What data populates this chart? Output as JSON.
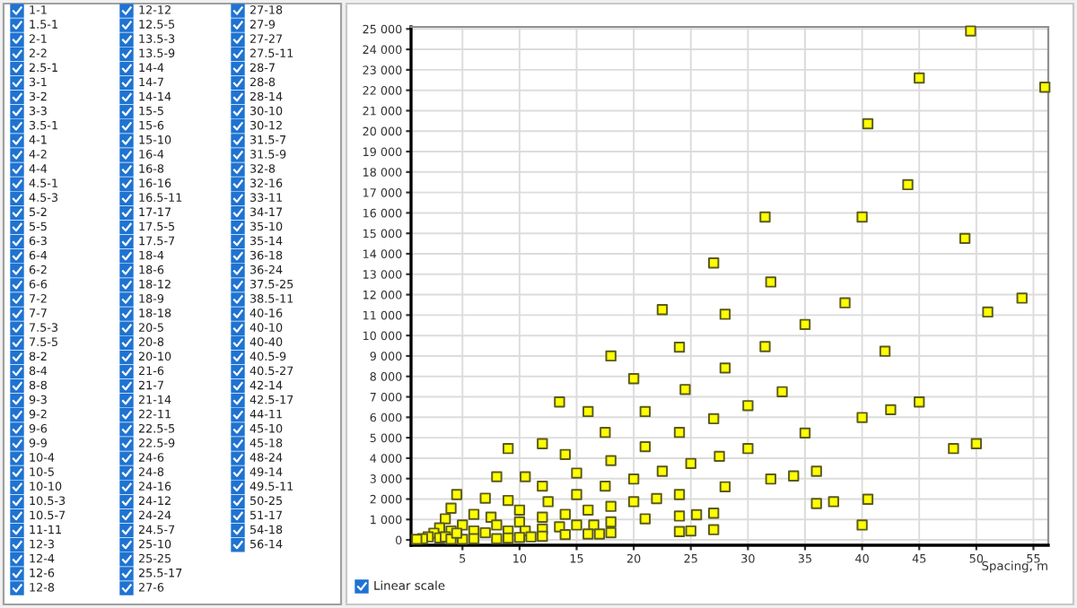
{
  "chart_data": [
    {
      "type": "other",
      "annotations": [
        "1-1",
        "1.5-1",
        "2-1",
        "2-2",
        "2.5-1",
        "3-1",
        "3-2",
        "3-3",
        "3.5-1",
        "4-1",
        "4-2",
        "4-4",
        "4.5-1",
        "4.5-3",
        "5-2",
        "5-5",
        "6-3",
        "6-4",
        "6-2",
        "6-6",
        "7-2",
        "7-7",
        "7.5-3",
        "7.5-5",
        "8-2",
        "8-4",
        "8-8",
        "9-3",
        "9-2",
        "9-6",
        "9-9",
        "10-4",
        "10-5",
        "10-10",
        "10.5-3",
        "10.5-7",
        "11-11",
        "12-3",
        "12-4",
        "12-6",
        "12-8",
        "12-12",
        "12.5-5",
        "13.5-3",
        "13.5-9",
        "14-4",
        "14-7",
        "14-14",
        "15-5",
        "15-6",
        "15-10",
        "16-4",
        "16-8",
        "16-16",
        "16.5-11",
        "17-17",
        "17.5-5",
        "17.5-7",
        "18-4",
        "18-6",
        "18-12",
        "18-9",
        "18-18",
        "20-5",
        "20-8",
        "20-10",
        "21-6",
        "21-7",
        "21-14",
        "22-11",
        "22.5-5",
        "22.5-9",
        "24-6",
        "24-8",
        "24-16",
        "24-12",
        "24-24",
        "24.5-7",
        "25-10",
        "25-25",
        "25.5-17",
        "27-6",
        "27-18",
        "27-9",
        "27-27",
        "27.5-11",
        "28-7",
        "28-8",
        "28-14",
        "30-10",
        "30-12",
        "31.5-7",
        "31.5-9",
        "32-8",
        "32-16",
        "33-11",
        "34-17",
        "35-10",
        "35-14",
        "36-18",
        "36-24",
        "37.5-25",
        "38.5-11",
        "40-16",
        "40-10",
        "40-40",
        "40.5-9",
        "40.5-27",
        "42-14",
        "42.5-17",
        "44-11",
        "45-10",
        "45-18",
        "48-24",
        "49-14",
        "49.5-11",
        "50-25",
        "51-17",
        "54-18",
        "56-14"
      ]
    },
    {
      "type": "scatter",
      "xlabel": "Spacing, m",
      "annotations": [
        "Linear scale"
      ],
      "marker": "square",
      "grid": true,
      "color": "#ffff00",
      "xlim": [
        0.5,
        56.3
      ],
      "ylim": [
        -260,
        25100
      ],
      "xticks": [
        5,
        10,
        15,
        20,
        25,
        30,
        35,
        40,
        45,
        50,
        55
      ],
      "yticks": [
        {
          "value": 0,
          "label": "0"
        },
        {
          "value": 1000,
          "label": "1 000"
        },
        {
          "value": 2000,
          "label": "2 000"
        },
        {
          "value": 3000,
          "label": "3 000"
        },
        {
          "value": 4000,
          "label": "4 000"
        },
        {
          "value": 5000,
          "label": "5 000"
        },
        {
          "value": 6000,
          "label": "6 000"
        },
        {
          "value": 7000,
          "label": "7 000"
        },
        {
          "value": 8000,
          "label": "8 000"
        },
        {
          "value": 9000,
          "label": "9 000"
        },
        {
          "value": 10000,
          "label": "10 000"
        },
        {
          "value": 11000,
          "label": "11 000"
        },
        {
          "value": 12000,
          "label": "12 000"
        },
        {
          "value": 13000,
          "label": "13 000"
        },
        {
          "value": 14000,
          "label": "14 000"
        },
        {
          "value": 15000,
          "label": "15 000"
        },
        {
          "value": 16000,
          "label": "16 000"
        },
        {
          "value": 17000,
          "label": "17 000"
        },
        {
          "value": 18000,
          "label": "18 000"
        },
        {
          "value": 19000,
          "label": "19 000"
        },
        {
          "value": 20000,
          "label": "20 000"
        },
        {
          "value": 21000,
          "label": "21 000"
        },
        {
          "value": 22000,
          "label": "22 000"
        },
        {
          "value": 23000,
          "label": "23 000"
        },
        {
          "value": 24000,
          "label": "24 000"
        },
        {
          "value": 25000,
          "label": "25 000"
        }
      ],
      "x": [
        49.5,
        45,
        56,
        40.5,
        44,
        31.5,
        40,
        49,
        27,
        32,
        38.5,
        54,
        28,
        51,
        35,
        31.5,
        42,
        28,
        33,
        30,
        45,
        27,
        40,
        42.5,
        35,
        30,
        27.5,
        48,
        50,
        25,
        28,
        32,
        34,
        36,
        36,
        37.5,
        40.5,
        25.5,
        27,
        25,
        27,
        40,
        22.5,
        24,
        18,
        24.5,
        20,
        13.5,
        16,
        21,
        17.5,
        24,
        9,
        12,
        21,
        14,
        18,
        8,
        10.5,
        15,
        20,
        22.5,
        12,
        17.5,
        4.5,
        7,
        9,
        12.5,
        15,
        20,
        22,
        24,
        4,
        6,
        10,
        14,
        16,
        18,
        3.5,
        7.5,
        12,
        21,
        24,
        3,
        5,
        6,
        8,
        10,
        13.5,
        15,
        16.5,
        18,
        4,
        7,
        9,
        10.5,
        12,
        14,
        16,
        17,
        18,
        24,
        2.5,
        2,
        1.5,
        1,
        3,
        3.5,
        4,
        5,
        6,
        8,
        9,
        10,
        11,
        12,
        4.5
      ],
      "values": [
        24900,
        22600,
        22150,
        20360,
        17380,
        15800,
        15800,
        14750,
        13550,
        12620,
        11600,
        11830,
        11040,
        11150,
        10540,
        9460,
        9230,
        8410,
        7250,
        6570,
        6750,
        5930,
        5990,
        6370,
        5230,
        4470,
        4090,
        4470,
        4710,
        3740,
        2600,
        2980,
        3130,
        3360,
        1780,
        1870,
        1990,
        1230,
        1310,
        440,
        500,
        730,
        11270,
        9430,
        9000,
        7360,
        7890,
        6750,
        6280,
        6280,
        5260,
        5260,
        4470,
        4710,
        4560,
        4180,
        3880,
        3090,
        3090,
        3270,
        2980,
        3360,
        2630,
        2630,
        2220,
        2040,
        1930,
        1870,
        2220,
        1870,
        2020,
        2220,
        1550,
        1250,
        1460,
        1250,
        1460,
        1640,
        1030,
        1110,
        1110,
        1030,
        1170,
        590,
        730,
        440,
        730,
        880,
        640,
        730,
        730,
        880,
        440,
        350,
        440,
        440,
        530,
        260,
        290,
        290,
        350,
        410,
        330,
        150,
        60,
        30,
        100,
        150,
        40,
        30,
        60,
        60,
        90,
        120,
        150,
        180,
        330
      ]
    }
  ]
}
